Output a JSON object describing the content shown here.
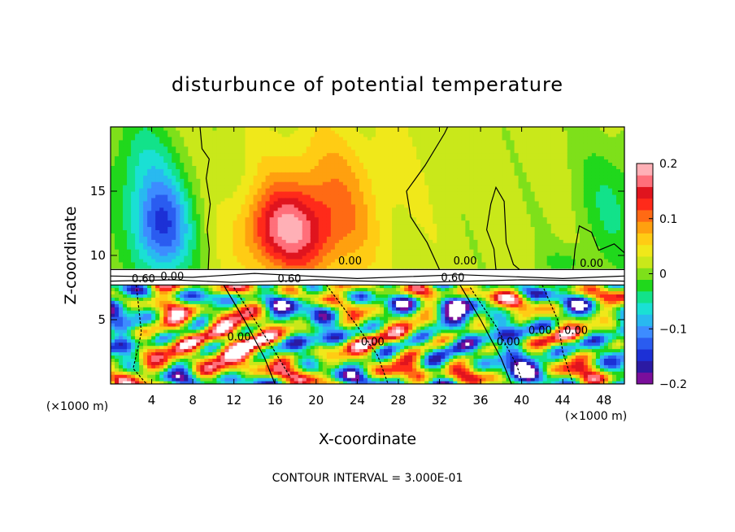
{
  "chart_data": {
    "type": "heatmap",
    "title": "disturbunce of potential temperature",
    "xlabel": "X-coordinate",
    "ylabel": "Z-coordinate",
    "x_unit": "(×1000 m)",
    "x_unit_right": "(×1000 m)",
    "xlim": [
      0,
      50
    ],
    "ylim": [
      0,
      20
    ],
    "x_ticks": [
      4,
      8,
      12,
      16,
      20,
      24,
      28,
      32,
      36,
      40,
      44,
      48
    ],
    "y_ticks": [
      5,
      10,
      15
    ],
    "colorbar": {
      "min": -0.2,
      "max": 0.2,
      "ticks": [
        -0.2,
        -0.1,
        0,
        0.1,
        0.2
      ],
      "tick_labels": [
        "−0.2",
        "−0.1",
        "0",
        "0.1",
        "0.2"
      ],
      "colors": [
        "#7a0e9b",
        "#2b1aa3",
        "#1c30d6",
        "#2a5cf0",
        "#3d8cff",
        "#29b9f0",
        "#1ae0d4",
        "#12e28a",
        "#20d81c",
        "#7ee01a",
        "#c9e81a",
        "#f0e81a",
        "#ffcc14",
        "#ffa00f",
        "#ff6a14",
        "#ff2a1a",
        "#e0141e",
        "#ff6f7a",
        "#ffb0b6"
      ]
    },
    "contour_labels": [
      "0.00",
      "0.00",
      "0.60",
      "0.00",
      "0.60",
      "0.00",
      "0.60",
      "0.00",
      "0.00",
      "0.00",
      "0.00",
      "0.00"
    ],
    "footnote": "CONTOUR INTERVAL = 3.000E-01"
  }
}
